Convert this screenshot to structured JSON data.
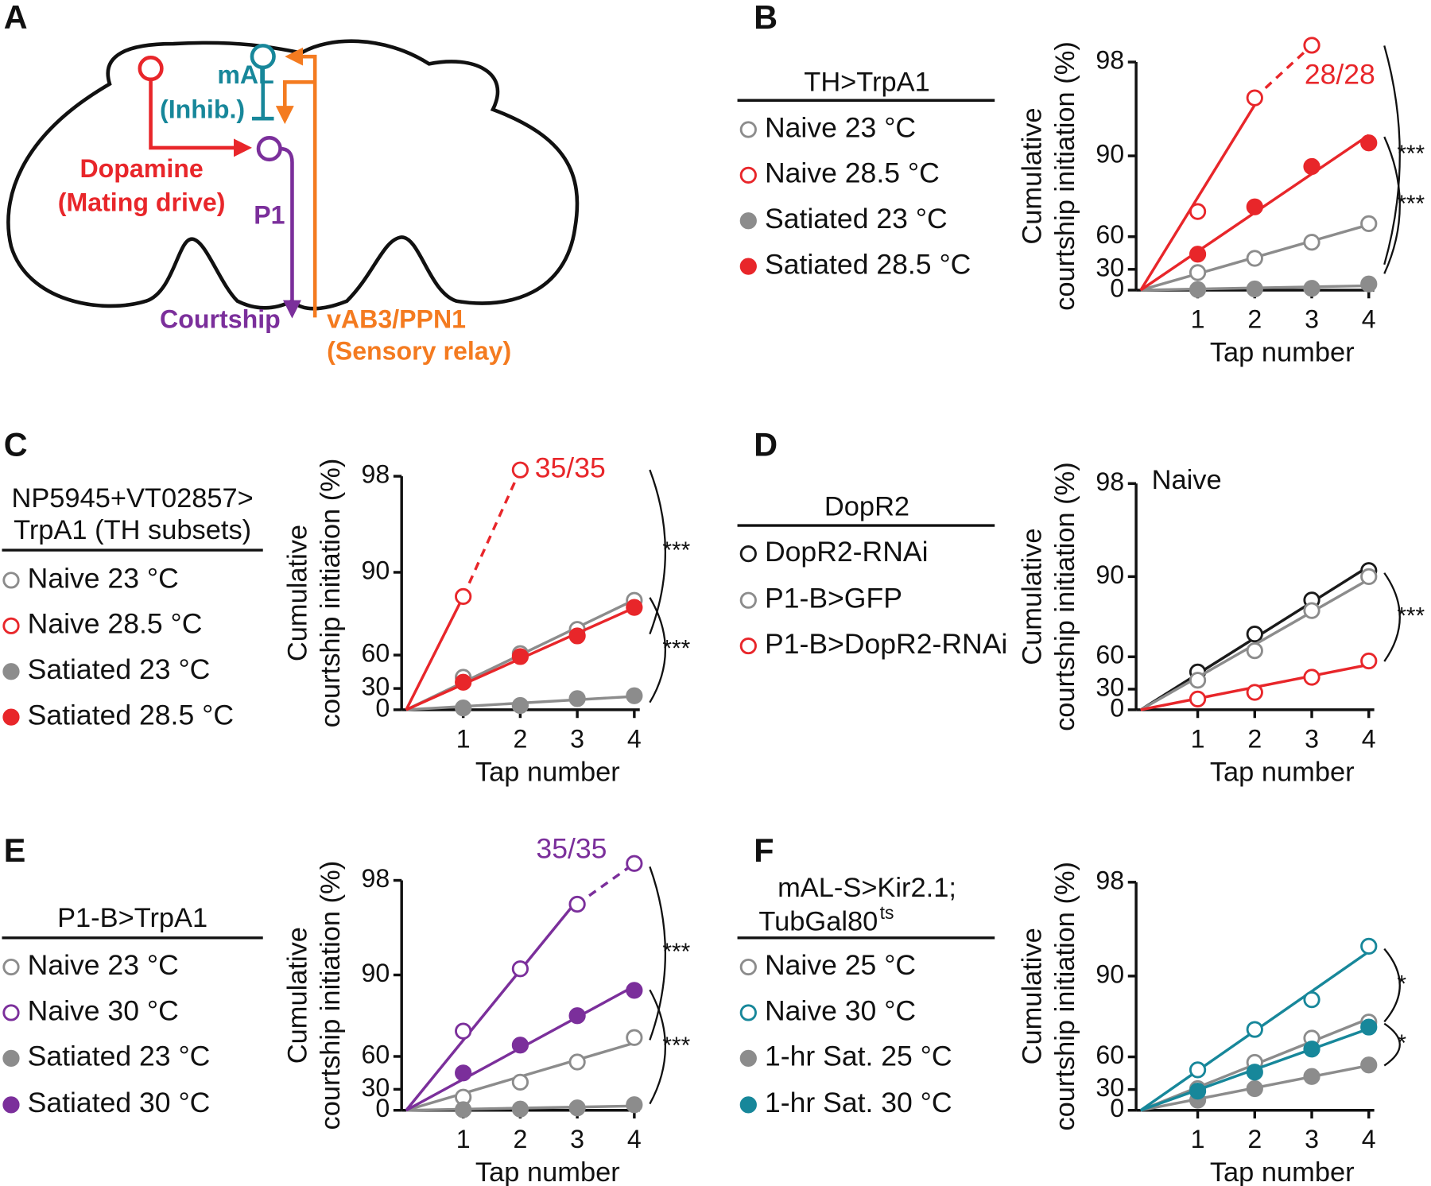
{
  "panel_a": {
    "letter": "A",
    "mal": "mAL",
    "inhib": "(Inhib.)",
    "dopamine": "Dopamine",
    "mating": "(Mating drive)",
    "p1": "P1",
    "courtship": "Courtship",
    "vab3": "vAB3/PPN1",
    "relay": "(Sensory relay)"
  },
  "chart_data": [
    {
      "type": "line",
      "letter": "B",
      "legend_title": [
        "TH>TrpA1"
      ],
      "xlabel": "Tap number",
      "ylabel": [
        "Cumulative",
        "courtship initiation (%)"
      ],
      "yscale": "cumulative-hazard",
      "xlim": [
        0,
        4
      ],
      "xticks": [
        1,
        2,
        3,
        4
      ],
      "ylim": [
        0,
        98
      ],
      "yticks": [
        0,
        30,
        60,
        90,
        98
      ],
      "series": [
        {
          "name": "Naive 23 °C",
          "color": "#8c8c8c",
          "marker": "open",
          "values": [
            26,
            42,
            56,
            68
          ]
        },
        {
          "name": "Naive 28.5 °C",
          "color": "#e8262a",
          "marker": "open",
          "values": [
            74,
            96.3,
            98.5,
            null
          ],
          "annotation": "28/28"
        },
        {
          "name": "Satiated 23 °C",
          "color": "#8c8c8c",
          "marker": "filled",
          "values": [
            1,
            2,
            3,
            10
          ]
        },
        {
          "name": "Satiated 28.5 °C",
          "color": "#e8262a",
          "marker": "filled",
          "values": [
            46,
            76,
            88,
            92
          ]
        }
      ],
      "significance": [
        "***",
        "***"
      ]
    },
    {
      "type": "line",
      "letter": "C",
      "legend_title": [
        "NP5945+VT02857>",
        "TrpA1 (TH subsets)"
      ],
      "xlabel": "Tap number",
      "ylabel": [
        "Cumulative",
        "courtship initiation (%)"
      ],
      "yscale": "cumulative-hazard",
      "xlim": [
        0,
        4
      ],
      "xticks": [
        1,
        2,
        3,
        4
      ],
      "ylim": [
        0,
        98
      ],
      "yticks": [
        0,
        30,
        60,
        90,
        98
      ],
      "series": [
        {
          "name": "Naive 23 °C",
          "color": "#8c8c8c",
          "marker": "open",
          "values": [
            42,
            61,
            74,
            84
          ]
        },
        {
          "name": "Naive 28.5 °C",
          "color": "#e8262a",
          "marker": "open",
          "values": [
            85,
            98.2,
            null,
            null
          ],
          "annotation": "35/35"
        },
        {
          "name": "Satiated 23 °C",
          "color": "#8c8c8c",
          "marker": "filled",
          "values": [
            3,
            7,
            17,
            21
          ]
        },
        {
          "name": "Satiated 28.5 °C",
          "color": "#e8262a",
          "marker": "filled",
          "values": [
            37,
            59,
            71,
            82
          ]
        }
      ],
      "significance": [
        "***",
        "***"
      ]
    },
    {
      "type": "line",
      "letter": "D",
      "legend_title": [
        "DopR2"
      ],
      "note": "Naive",
      "xlabel": "Tap number",
      "ylabel": [
        "Cumulative",
        "courtship initiation (%)"
      ],
      "yscale": "cumulative-hazard",
      "xlim": [
        0,
        4
      ],
      "xticks": [
        1,
        2,
        3,
        4
      ],
      "ylim": [
        0,
        98
      ],
      "yticks": [
        0,
        30,
        60,
        90,
        98
      ],
      "series": [
        {
          "name": "DopR2-RNAi",
          "color": "#1a1a1a",
          "marker": "open",
          "values": [
            48,
            73,
            85,
            91
          ]
        },
        {
          "name": "P1-B>GFP",
          "color": "#8c8c8c",
          "marker": "open",
          "values": [
            40,
            64,
            82,
            90
          ]
        },
        {
          "name": "P1-B>DopR2-RNAi",
          "color": "#e8262a",
          "marker": "open",
          "values": [
            17,
            26,
            43,
            57
          ]
        }
      ],
      "significance": [
        "***"
      ]
    },
    {
      "type": "line",
      "letter": "E",
      "legend_title": [
        "P1-B>TrpA1"
      ],
      "xlabel": "Tap number",
      "ylabel": [
        "Cumulative",
        "courtship initiation (%)"
      ],
      "yscale": "cumulative-hazard",
      "xlim": [
        0,
        4
      ],
      "xticks": [
        1,
        2,
        3,
        4
      ],
      "ylim": [
        0,
        98
      ],
      "yticks": [
        0,
        30,
        60,
        90,
        98
      ],
      "series": [
        {
          "name": "Naive 23 °C",
          "color": "#8c8c8c",
          "marker": "open",
          "values": [
            20,
            38,
            56,
            71
          ]
        },
        {
          "name": "Naive 30 °C",
          "color": "#7b2f9b",
          "marker": "open",
          "values": [
            74,
            91,
            97,
            98.5
          ],
          "annotation": "35/35"
        },
        {
          "name": "Satiated 23 °C",
          "color": "#8c8c8c",
          "marker": "filled",
          "values": [
            1,
            2,
            4,
            9
          ]
        },
        {
          "name": "Satiated 30 °C",
          "color": "#7b2f9b",
          "marker": "filled",
          "values": [
            47,
            67,
            80,
            87
          ]
        }
      ],
      "significance": [
        "***",
        "***"
      ]
    },
    {
      "type": "line",
      "letter": "F",
      "legend_title": [
        "mAL-S>Kir2.1;",
        "TubGal80"
      ],
      "legend_title_sup": "ts",
      "xlabel": "Tap number",
      "ylabel": [
        "Cumulative",
        "courtship initiation (%)"
      ],
      "yscale": "cumulative-hazard",
      "xlim": [
        0,
        4
      ],
      "xticks": [
        1,
        2,
        3,
        4
      ],
      "ylim": [
        0,
        98
      ],
      "yticks": [
        0,
        30,
        60,
        90,
        98
      ],
      "series": [
        {
          "name": "Naive 25 °C",
          "color": "#8c8c8c",
          "marker": "open",
          "values": [
            31,
            56,
            71,
            78
          ]
        },
        {
          "name": "Naive 30 °C",
          "color": "#17879a",
          "marker": "open",
          "values": [
            50,
            75,
            85,
            94
          ]
        },
        {
          "name": "1-hr Sat. 25 °C",
          "color": "#8c8c8c",
          "marker": "filled",
          "values": [
            16,
            31,
            44,
            54
          ]
        },
        {
          "name": "1-hr Sat. 30 °C",
          "color": "#17879a",
          "marker": "filled",
          "values": [
            28,
            48,
            65,
            76
          ]
        }
      ],
      "significance": [
        "*",
        "*"
      ]
    }
  ]
}
